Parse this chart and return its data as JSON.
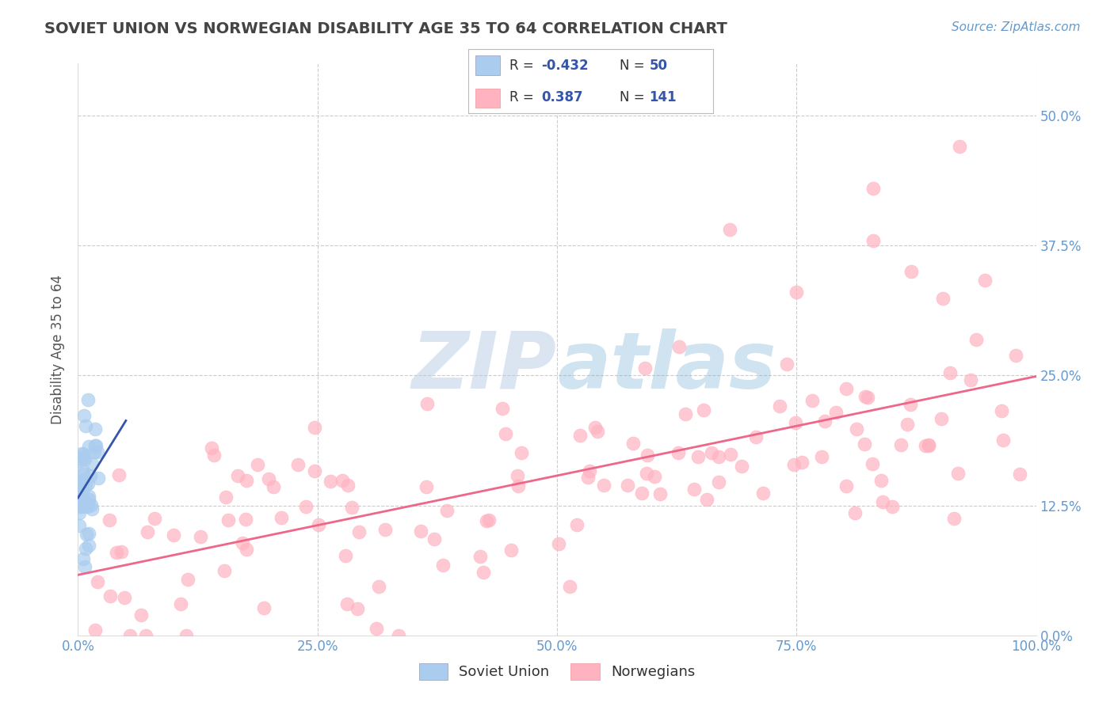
{
  "title": "SOVIET UNION VS NORWEGIAN DISABILITY AGE 35 TO 64 CORRELATION CHART",
  "source": "Source: ZipAtlas.com",
  "ylabel": "Disability Age 35 to 64",
  "xlim": [
    0.0,
    1.0
  ],
  "ylim": [
    0.0,
    0.55
  ],
  "yticks": [
    0.0,
    0.125,
    0.25,
    0.375,
    0.5
  ],
  "ytick_labels": [
    "0.0%",
    "12.5%",
    "25.0%",
    "37.5%",
    "50.0%"
  ],
  "xticks": [
    0.0,
    0.25,
    0.5,
    0.75,
    1.0
  ],
  "xtick_labels": [
    "0.0%",
    "25.0%",
    "50.0%",
    "75.0%",
    "100.0%"
  ],
  "blue_color": "#AACCEE",
  "pink_color": "#FFB3C1",
  "blue_line_color": "#3355AA",
  "pink_line_color": "#EE6688",
  "axis_color": "#6699CC",
  "grid_color": "#CCCCCC",
  "title_color": "#444444",
  "watermark_color": "#C5D8EE",
  "legend_text_color": "#333333",
  "legend_value_color": "#3355AA",
  "source_color": "#6699CC"
}
